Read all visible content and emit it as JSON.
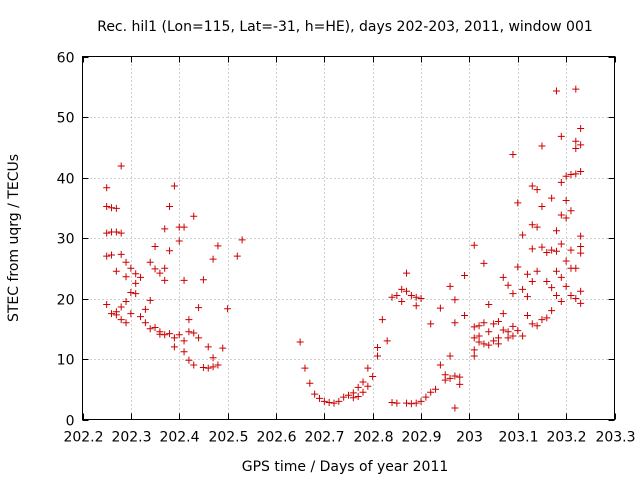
{
  "chart_data": {
    "type": "scatter",
    "title": "Rec. hil1 (Lon=115, Lat=-31, h=HE), days 202-203, 2011, window 001",
    "xlabel": "GPS time / Days of year 2011",
    "ylabel": "STEC from uqrg / TECUs",
    "xlim": [
      202.2,
      203.3
    ],
    "ylim": [
      0,
      60
    ],
    "xticks": [
      202.2,
      202.3,
      202.4,
      202.5,
      202.6,
      202.7,
      202.8,
      202.9,
      203,
      203.1,
      203.2,
      203.3
    ],
    "xtick_labels": [
      "202.2",
      "202.3",
      "202.4",
      "202.5",
      "202.6",
      "202.7",
      "202.8",
      "202.9",
      "203",
      "203.1",
      "203.2",
      "203.3"
    ],
    "yticks": [
      0,
      10,
      20,
      30,
      40,
      50,
      60
    ],
    "ytick_labels": [
      "0",
      "10",
      "20",
      "30",
      "40",
      "50",
      "60"
    ],
    "grid": true,
    "marker": "+",
    "color": "#cc0000",
    "points": [
      [
        202.25,
        38.3
      ],
      [
        202.25,
        35.2
      ],
      [
        202.26,
        35.0
      ],
      [
        202.27,
        34.9
      ],
      [
        202.25,
        30.8
      ],
      [
        202.26,
        31.0
      ],
      [
        202.27,
        31.0
      ],
      [
        202.28,
        30.8
      ],
      [
        202.25,
        27.0
      ],
      [
        202.26,
        27.2
      ],
      [
        202.28,
        41.9
      ],
      [
        202.27,
        24.5
      ],
      [
        202.28,
        27.3
      ],
      [
        202.29,
        26.0
      ],
      [
        202.3,
        25.0
      ],
      [
        202.29,
        23.6
      ],
      [
        202.25,
        19.0
      ],
      [
        202.26,
        17.5
      ],
      [
        202.27,
        17.8
      ],
      [
        202.27,
        17.3
      ],
      [
        202.28,
        16.5
      ],
      [
        202.28,
        18.6
      ],
      [
        202.29,
        19.5
      ],
      [
        202.29,
        16.0
      ],
      [
        202.3,
        17.5
      ],
      [
        202.3,
        21.0
      ],
      [
        202.31,
        22.5
      ],
      [
        202.31,
        20.8
      ],
      [
        202.31,
        24.1
      ],
      [
        202.32,
        23.5
      ],
      [
        202.32,
        17.0
      ],
      [
        202.33,
        16.0
      ],
      [
        202.33,
        18.2
      ],
      [
        202.34,
        15.0
      ],
      [
        202.34,
        19.7
      ],
      [
        202.34,
        26.0
      ],
      [
        202.35,
        28.6
      ],
      [
        202.35,
        24.9
      ],
      [
        202.35,
        15.2
      ],
      [
        202.36,
        14.5
      ],
      [
        202.36,
        14.1
      ],
      [
        202.36,
        24.2
      ],
      [
        202.37,
        23.0
      ],
      [
        202.37,
        25.0
      ],
      [
        202.37,
        31.5
      ],
      [
        202.37,
        14.0
      ],
      [
        202.38,
        14.2
      ],
      [
        202.38,
        35.2
      ],
      [
        202.38,
        27.9
      ],
      [
        202.39,
        13.5
      ],
      [
        202.39,
        12.0
      ],
      [
        202.39,
        38.6
      ],
      [
        202.4,
        29.5
      ],
      [
        202.4,
        31.8
      ],
      [
        202.4,
        14.0
      ],
      [
        202.41,
        13.0
      ],
      [
        202.41,
        11.2
      ],
      [
        202.41,
        23.0
      ],
      [
        202.41,
        31.8
      ],
      [
        202.42,
        14.5
      ],
      [
        202.42,
        9.8
      ],
      [
        202.42,
        16.5
      ],
      [
        202.43,
        33.6
      ],
      [
        202.43,
        14.3
      ],
      [
        202.43,
        9.0
      ],
      [
        202.44,
        18.5
      ],
      [
        202.44,
        13.5
      ],
      [
        202.45,
        8.6
      ],
      [
        202.45,
        23.1
      ],
      [
        202.46,
        12.0
      ],
      [
        202.46,
        8.5
      ],
      [
        202.47,
        26.5
      ],
      [
        202.47,
        8.7
      ],
      [
        202.47,
        10.2
      ],
      [
        202.48,
        28.7
      ],
      [
        202.48,
        9.0
      ],
      [
        202.49,
        11.8
      ],
      [
        202.5,
        18.3
      ],
      [
        202.52,
        27.0
      ],
      [
        202.53,
        29.7
      ],
      [
        202.65,
        12.8
      ],
      [
        202.66,
        8.5
      ],
      [
        202.67,
        6.0
      ],
      [
        202.68,
        4.2
      ],
      [
        202.69,
        3.5
      ],
      [
        202.7,
        3.0
      ],
      [
        202.71,
        2.8
      ],
      [
        202.72,
        2.7
      ],
      [
        202.73,
        3.0
      ],
      [
        202.74,
        3.7
      ],
      [
        202.75,
        4.0
      ],
      [
        202.76,
        3.6
      ],
      [
        202.76,
        4.4
      ],
      [
        202.77,
        5.3
      ],
      [
        202.77,
        3.8
      ],
      [
        202.78,
        6.2
      ],
      [
        202.78,
        4.5
      ],
      [
        202.79,
        5.5
      ],
      [
        202.79,
        8.5
      ],
      [
        202.8,
        7.1
      ],
      [
        202.81,
        11.9
      ],
      [
        202.81,
        10.5
      ],
      [
        202.82,
        16.5
      ],
      [
        202.83,
        13.0
      ],
      [
        202.84,
        20.2
      ],
      [
        202.84,
        2.8
      ],
      [
        202.85,
        20.5
      ],
      [
        202.85,
        2.7
      ],
      [
        202.86,
        19.5
      ],
      [
        202.86,
        21.5
      ],
      [
        202.87,
        24.2
      ],
      [
        202.87,
        2.7
      ],
      [
        202.87,
        21.2
      ],
      [
        202.88,
        20.5
      ],
      [
        202.88,
        2.6
      ],
      [
        202.89,
        18.8
      ],
      [
        202.89,
        20.2
      ],
      [
        202.89,
        2.7
      ],
      [
        202.9,
        20.0
      ],
      [
        202.9,
        3.0
      ],
      [
        202.91,
        3.7
      ],
      [
        202.92,
        15.8
      ],
      [
        202.92,
        4.5
      ],
      [
        202.93,
        5.0
      ],
      [
        202.94,
        18.4
      ],
      [
        202.94,
        9.0
      ],
      [
        202.95,
        7.4
      ],
      [
        202.95,
        6.5
      ],
      [
        202.96,
        6.8
      ],
      [
        202.96,
        10.5
      ],
      [
        202.96,
        22.0
      ],
      [
        202.97,
        19.8
      ],
      [
        202.97,
        1.9
      ],
      [
        202.97,
        7.2
      ],
      [
        202.97,
        16.0
      ],
      [
        202.98,
        7.0
      ],
      [
        202.98,
        5.8
      ],
      [
        202.99,
        23.8
      ],
      [
        202.99,
        17.2
      ],
      [
        203.01,
        28.8
      ],
      [
        203.01,
        15.3
      ],
      [
        203.01,
        13.5
      ],
      [
        203.01,
        11.5
      ],
      [
        203.01,
        10.5
      ],
      [
        203.02,
        15.5
      ],
      [
        203.02,
        12.8
      ],
      [
        203.02,
        13.8
      ],
      [
        203.03,
        25.8
      ],
      [
        203.03,
        16.0
      ],
      [
        203.03,
        12.5
      ],
      [
        203.04,
        19.0
      ],
      [
        203.04,
        14.5
      ],
      [
        203.04,
        12.3
      ],
      [
        203.05,
        15.8
      ],
      [
        203.05,
        13.0
      ],
      [
        203.06,
        16.2
      ],
      [
        203.06,
        13.5
      ],
      [
        203.06,
        12.5
      ],
      [
        203.07,
        23.5
      ],
      [
        203.07,
        17.5
      ],
      [
        203.07,
        14.8
      ],
      [
        203.08,
        22.2
      ],
      [
        203.08,
        13.5
      ],
      [
        203.08,
        14.5
      ],
      [
        203.09,
        20.8
      ],
      [
        203.09,
        13.8
      ],
      [
        203.09,
        43.8
      ],
      [
        203.09,
        15.4
      ],
      [
        203.1,
        35.8
      ],
      [
        203.1,
        25.2
      ],
      [
        203.1,
        14.7
      ],
      [
        203.11,
        21.5
      ],
      [
        203.11,
        30.5
      ],
      [
        203.11,
        13.8
      ],
      [
        203.12,
        20.3
      ],
      [
        203.12,
        24.0
      ],
      [
        203.12,
        17.2
      ],
      [
        203.13,
        38.6
      ],
      [
        203.13,
        32.2
      ],
      [
        203.13,
        28.2
      ],
      [
        203.13,
        22.8
      ],
      [
        203.13,
        15.8
      ],
      [
        203.14,
        38.0
      ],
      [
        203.14,
        31.8
      ],
      [
        203.14,
        24.5
      ],
      [
        203.14,
        15.5
      ],
      [
        203.15,
        45.2
      ],
      [
        203.15,
        35.2
      ],
      [
        203.15,
        28.5
      ],
      [
        203.15,
        16.5
      ],
      [
        203.16,
        27.6
      ],
      [
        203.16,
        22.8
      ],
      [
        203.16,
        16.8
      ],
      [
        203.17,
        36.6
      ],
      [
        203.17,
        28.0
      ],
      [
        203.17,
        21.8
      ],
      [
        203.17,
        18.0
      ],
      [
        203.18,
        54.3
      ],
      [
        203.18,
        31.2
      ],
      [
        203.18,
        27.8
      ],
      [
        203.18,
        24.5
      ],
      [
        203.18,
        20.5
      ],
      [
        203.19,
        46.8
      ],
      [
        203.19,
        39.2
      ],
      [
        203.19,
        33.8
      ],
      [
        203.19,
        29.0
      ],
      [
        203.19,
        23.5
      ],
      [
        203.19,
        19.5
      ],
      [
        203.2,
        40.2
      ],
      [
        203.2,
        36.2
      ],
      [
        203.2,
        33.3
      ],
      [
        203.2,
        26.2
      ],
      [
        203.2,
        22.0
      ],
      [
        203.21,
        40.5
      ],
      [
        203.21,
        34.5
      ],
      [
        203.21,
        28.0
      ],
      [
        203.21,
        25.0
      ],
      [
        203.21,
        20.5
      ],
      [
        203.22,
        54.6
      ],
      [
        203.22,
        46.0
      ],
      [
        203.22,
        44.8
      ],
      [
        203.22,
        40.6
      ],
      [
        203.22,
        25.0
      ],
      [
        203.22,
        20.0
      ],
      [
        203.23,
        48.1
      ],
      [
        203.23,
        45.4
      ],
      [
        203.23,
        41.0
      ],
      [
        203.23,
        30.3
      ],
      [
        203.23,
        28.6
      ],
      [
        203.23,
        27.5
      ],
      [
        203.23,
        21.2
      ],
      [
        203.23,
        19.2
      ]
    ]
  }
}
